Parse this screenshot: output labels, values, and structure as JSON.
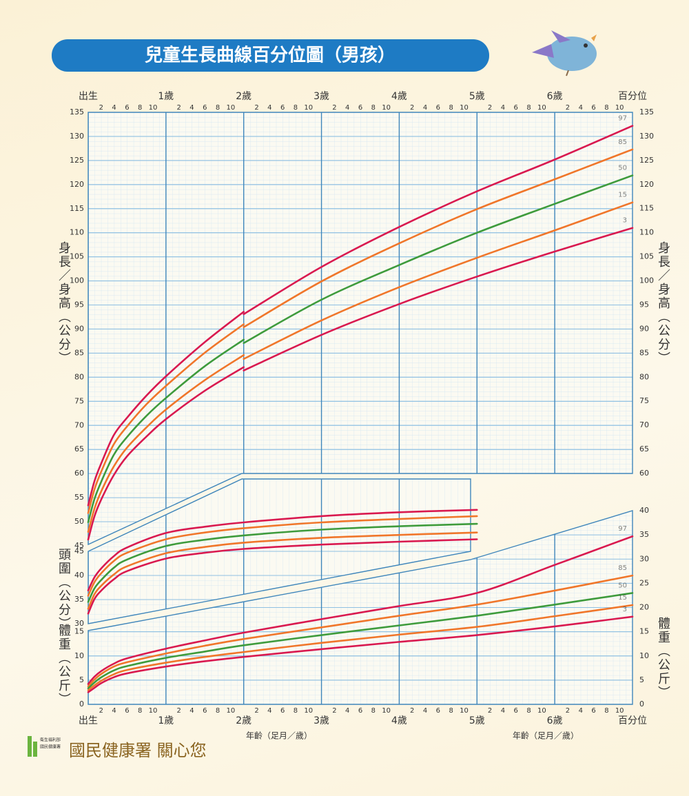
{
  "title": "兒童生長曲線百分位圖（男孩）",
  "footer": {
    "agency_logo": [
      "衛生福利部",
      "國民健康署"
    ],
    "slogan": "國民健康署 關心您"
  },
  "chart_data": [
    {
      "type": "line",
      "y_label": "身長／身高（公分）",
      "percentile_header": "百分位",
      "x": [
        0,
        0.08,
        0.17,
        0.33,
        0.5,
        0.75,
        1,
        1.5,
        2,
        null,
        2,
        3,
        4,
        5,
        6,
        7
      ],
      "xlim": [
        0,
        7
      ],
      "xticks": [
        {
          "value": 0,
          "label": "出生"
        },
        {
          "value": 1,
          "label": "1歲"
        },
        {
          "value": 2,
          "label": "2歲"
        },
        {
          "value": 3,
          "label": "3歲"
        },
        {
          "value": 4,
          "label": "4歲"
        },
        {
          "value": 5,
          "label": "5歲"
        },
        {
          "value": 6,
          "label": "6歲"
        }
      ],
      "minor_xticks": [
        2,
        4,
        6,
        8,
        10
      ],
      "ylim": [
        45,
        135
      ],
      "yticks": [
        45,
        50,
        55,
        60,
        65,
        70,
        75,
        80,
        85,
        90,
        95,
        100,
        105,
        110,
        115,
        120,
        125,
        130,
        135
      ],
      "y2lim": [
        60,
        135
      ],
      "y2ticks": [
        60,
        65,
        70,
        75,
        80,
        85,
        90,
        95,
        100,
        105,
        110,
        115,
        120,
        125,
        130,
        135
      ],
      "grid": true,
      "series": [
        {
          "name": "97",
          "color": "#d9194f",
          "values": [
            53.4,
            58.4,
            62.2,
            68.0,
            71.6,
            76.2,
            80.2,
            87.3,
            93.6,
            null,
            93.1,
            102.9,
            111.2,
            118.6,
            125.2,
            132.2
          ]
        },
        {
          "name": "85",
          "color": "#f0762a",
          "values": [
            51.8,
            56.7,
            60.5,
            66.1,
            69.8,
            74.4,
            78.2,
            85.1,
            91.0,
            null,
            90.4,
            99.9,
            107.8,
            114.9,
            121.1,
            127.3
          ]
        },
        {
          "name": "50",
          "color": "#3e9b3c",
          "values": [
            49.9,
            54.7,
            58.4,
            63.9,
            67.6,
            72.0,
            75.7,
            82.3,
            87.8,
            null,
            87.1,
            96.1,
            103.3,
            110.0,
            116.0,
            121.9
          ]
        },
        {
          "name": "15",
          "color": "#f0762a",
          "values": [
            47.9,
            52.7,
            56.4,
            61.5,
            65.4,
            69.6,
            73.3,
            79.4,
            84.6,
            null,
            83.8,
            91.8,
            98.7,
            104.8,
            110.5,
            116.3
          ]
        },
        {
          "name": "3",
          "color": "#d9194f",
          "values": [
            46.3,
            51.1,
            54.7,
            59.7,
            63.6,
            67.7,
            71.3,
            77.2,
            82.1,
            null,
            81.4,
            88.8,
            95.2,
            100.9,
            106.1,
            111.0
          ]
        }
      ]
    },
    {
      "type": "line",
      "y_label": "頭圍（公分）",
      "x": [
        0,
        0.08,
        0.17,
        0.33,
        0.5,
        1,
        1.5,
        2,
        3,
        4,
        5
      ],
      "xlim": [
        0,
        7
      ],
      "ylim": [
        30,
        60
      ],
      "yticks": [
        30,
        35,
        40,
        45
      ],
      "grid": true,
      "series": [
        {
          "color": "#d9194f",
          "values": [
            36.9,
            39.6,
            41.5,
            44.0,
            45.8,
            48.8,
            50.1,
            51.0,
            52.3,
            53.1,
            53.6
          ]
        },
        {
          "color": "#f0762a",
          "values": [
            35.8,
            38.6,
            40.5,
            43.0,
            44.7,
            47.5,
            48.9,
            49.8,
            51.0,
            51.7,
            52.3
          ]
        },
        {
          "color": "#3e9b3c",
          "values": [
            34.5,
            37.3,
            39.1,
            41.6,
            43.3,
            46.1,
            47.4,
            48.3,
            49.5,
            50.2,
            50.7
          ]
        },
        {
          "color": "#f0762a",
          "values": [
            33.1,
            36.1,
            37.9,
            40.2,
            41.9,
            44.6,
            45.9,
            46.8,
            47.8,
            48.4,
            48.9
          ]
        },
        {
          "color": "#d9194f",
          "values": [
            32.1,
            35.1,
            36.9,
            39.2,
            40.9,
            43.5,
            44.7,
            45.5,
            46.4,
            47.0,
            47.5
          ]
        }
      ]
    },
    {
      "type": "line",
      "y_label": "體重（公斤）",
      "x_label": "年齡（足月／歲）",
      "percentile_header": "百分位",
      "x": [
        0,
        0.08,
        0.17,
        0.33,
        0.5,
        1,
        1.5,
        2,
        3,
        4,
        5,
        6,
        7
      ],
      "xlim": [
        0,
        7
      ],
      "xticks": [
        {
          "value": 0,
          "label": "出生"
        },
        {
          "value": 1,
          "label": "1歲"
        },
        {
          "value": 2,
          "label": "2歲"
        },
        {
          "value": 3,
          "label": "3歲"
        },
        {
          "value": 4,
          "label": "4歲"
        },
        {
          "value": 5,
          "label": "5歲"
        },
        {
          "value": 6,
          "label": "6歲"
        }
      ],
      "minor_xticks": [
        2,
        4,
        6,
        8,
        10
      ],
      "ylim": [
        0,
        40
      ],
      "yticks": [
        0,
        5,
        10,
        15
      ],
      "y2lim": [
        0,
        40
      ],
      "y2ticks": [
        0,
        5,
        10,
        15,
        20,
        25,
        30,
        35,
        40
      ],
      "grid": true,
      "series": [
        {
          "name": "97",
          "color": "#d9194f",
          "values": [
            4.2,
            5.7,
            6.9,
            8.4,
            9.5,
            11.5,
            13.2,
            14.8,
            17.6,
            20.3,
            23.0,
            28.8,
            34.7
          ]
        },
        {
          "name": "85",
          "color": "#f0762a",
          "values": [
            3.7,
            5.1,
            6.3,
            7.8,
            8.7,
            10.5,
            12.1,
            13.5,
            15.9,
            18.3,
            20.6,
            23.5,
            26.6
          ]
        },
        {
          "name": "50",
          "color": "#3e9b3c",
          "values": [
            3.3,
            4.5,
            5.6,
            7.0,
            7.9,
            9.6,
            10.9,
            12.2,
            14.3,
            16.3,
            18.3,
            20.6,
            23.0
          ]
        },
        {
          "name": "15",
          "color": "#f0762a",
          "values": [
            2.9,
            3.9,
            4.9,
            6.2,
            7.1,
            8.6,
            9.8,
            10.8,
            12.7,
            14.4,
            16.0,
            18.2,
            20.5
          ]
        },
        {
          "name": "3",
          "color": "#d9194f",
          "values": [
            2.5,
            3.4,
            4.4,
            5.6,
            6.4,
            7.8,
            8.9,
            9.8,
            11.4,
            12.9,
            14.3,
            16.1,
            18.1
          ]
        }
      ]
    }
  ]
}
